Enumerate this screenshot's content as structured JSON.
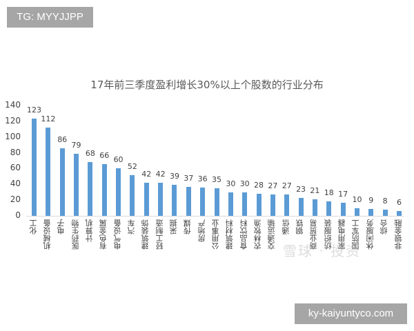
{
  "watermark_top": "TG: MYYJJPP",
  "watermark_bottom": "ky-kaiyuntyco.com",
  "watermark_center": "雪球 · 投资",
  "chart_data": {
    "type": "bar",
    "title": "17年前三季度盈利增长30%以上个股数的行业分布",
    "xlabel": "",
    "ylabel": "",
    "ylim": [
      0,
      140
    ],
    "yticks": [
      0,
      20,
      40,
      60,
      80,
      100,
      120,
      140
    ],
    "grid": false,
    "legend": null,
    "bar_color": "#5b9bd5",
    "categories": [
      "化工",
      "机械设备",
      "电子",
      "医药生物",
      "计算机",
      "有色金属",
      "电气设备",
      "汽车",
      "建筑装饰",
      "轻工制造",
      "采掘",
      "传媒",
      "房地产",
      "公用事业",
      "建筑材料",
      "食品饮料",
      "农林牧渔",
      "交通运输",
      "通信",
      "钢铁",
      "商业贸易",
      "纺织服装",
      "家用电器",
      "国防军工",
      "休闲服务",
      "综合",
      "非银金融"
    ],
    "values": [
      123,
      112,
      86,
      79,
      68,
      66,
      60,
      52,
      42,
      42,
      39,
      37,
      36,
      35,
      30,
      30,
      28,
      27,
      27,
      23,
      21,
      18,
      17,
      10,
      9,
      8,
      6
    ]
  }
}
